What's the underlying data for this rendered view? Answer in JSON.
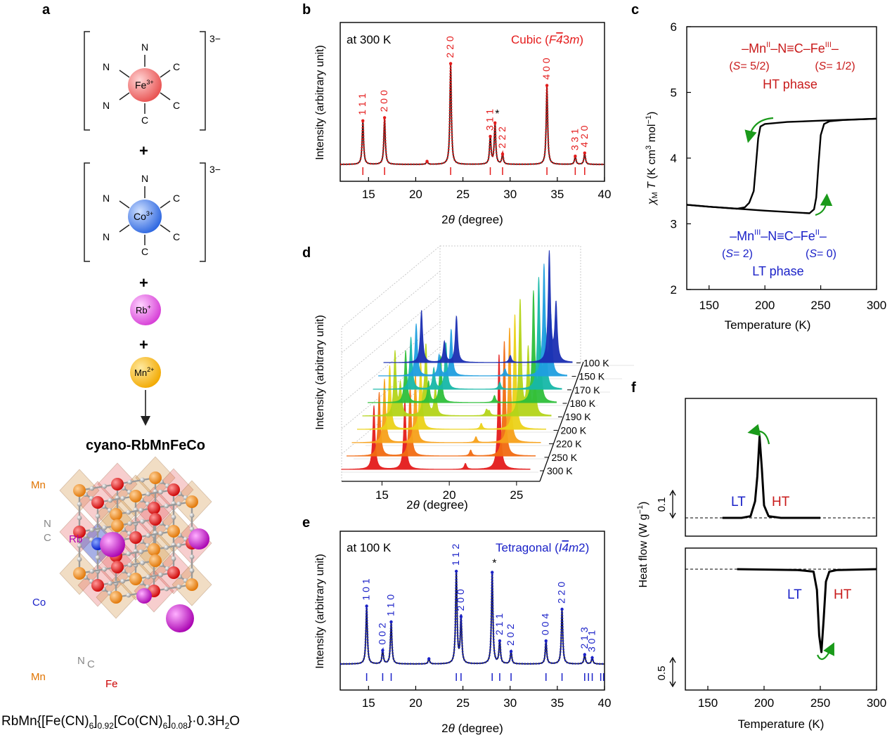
{
  "panel_letters": {
    "a": "a",
    "b": "b",
    "c": "c",
    "d": "d",
    "e": "e",
    "f": "f"
  },
  "panel_a": {
    "charge_top": "3−",
    "charge_mid": "3−",
    "fe_ion": "Fe",
    "fe_charge": "3+",
    "co_ion": "Co",
    "co_charge": "3+",
    "rb_ion": "Rb",
    "rb_charge": "+",
    "mn_ion": "Mn",
    "mn_charge": "2+",
    "ligand_n": "N",
    "ligand_c": "C",
    "plus": "+",
    "product_title": "cyano-RbMnFeCo",
    "struct_labels": {
      "mn_top": "Mn",
      "n": "N",
      "c": "C",
      "rb": "Rb",
      "co": "Co",
      "n2": "N",
      "c2": "C",
      "mn_bottom": "Mn",
      "fe": "Fe"
    },
    "formula": "RbMn{[Fe(CN)6]0.92[Co(CN)6]0.08}·0.3H2O"
  },
  "chart_data": [
    {
      "panel": "b",
      "type": "line",
      "annotation_left": "at 300 K",
      "annotation_right": "Cubic (F43m)",
      "xlabel": "2θ (degree)",
      "ylabel": "Intensity (arbitrary unit)",
      "xlim": [
        12,
        40
      ],
      "x_ticks": [
        15,
        20,
        25,
        30,
        35,
        40
      ],
      "color": "#e41b1b",
      "peaks": [
        {
          "x": 14.4,
          "h": 0.42,
          "label": "1 1 1"
        },
        {
          "x": 16.7,
          "h": 0.45,
          "label": "2 0 0"
        },
        {
          "x": 21.2,
          "h": 0.03,
          "label": ""
        },
        {
          "x": 23.7,
          "h": 0.97,
          "label": "2 2 0"
        },
        {
          "x": 27.9,
          "h": 0.27,
          "label": "3 1 1"
        },
        {
          "x": 28.4,
          "h": 0.4,
          "label": "*"
        },
        {
          "x": 29.2,
          "h": 0.1,
          "label": "2 2 2"
        },
        {
          "x": 33.9,
          "h": 0.76,
          "label": "4 0 0"
        },
        {
          "x": 36.9,
          "h": 0.08,
          "label": "3 3 1"
        },
        {
          "x": 37.9,
          "h": 0.11,
          "label": "4 2 0"
        }
      ],
      "ticks_x": [
        14.4,
        16.7,
        23.7,
        27.9,
        29.2,
        33.9,
        36.9,
        37.9
      ]
    },
    {
      "panel": "c",
      "type": "line",
      "xlabel": "Temperature (K)",
      "ylabel": "χMT (K cm3 mol−1)",
      "xlim": [
        130,
        300
      ],
      "ylim": [
        2,
        6
      ],
      "x_ticks": [
        150,
        200,
        250,
        300
      ],
      "y_ticks": [
        2,
        3,
        4,
        5,
        6
      ],
      "ht_label_line1": "–MnII–N≡C–FeIII–",
      "ht_spin1": "(S= 5/2)",
      "ht_spin2": "(S= 1/2)",
      "ht_phase": "HT phase",
      "lt_label_line1": "–MnIII–N≡C–FeII–",
      "lt_spin1": "(S= 2)",
      "lt_spin2": "(S= 0)",
      "lt_phase": "LT phase",
      "series": [
        {
          "name": "cooling",
          "x": [
            300,
            250,
            220,
            200,
            196,
            194,
            192,
            190,
            186,
            182,
            175,
            150,
            130
          ],
          "y": [
            4.6,
            4.57,
            4.55,
            4.52,
            4.48,
            4.3,
            3.9,
            3.5,
            3.32,
            3.25,
            3.23,
            3.26,
            3.29
          ]
        },
        {
          "name": "heating",
          "x": [
            130,
            150,
            200,
            240,
            244,
            246,
            248,
            250,
            253,
            258,
            270,
            300
          ],
          "y": [
            3.29,
            3.26,
            3.2,
            3.16,
            3.22,
            3.4,
            3.9,
            4.35,
            4.52,
            4.56,
            4.58,
            4.6
          ]
        }
      ]
    },
    {
      "panel": "d",
      "type": "line",
      "xlabel": "2θ (degree)",
      "ylabel": "Intensity (arbitrary unit)",
      "x_ticks": [
        15,
        20,
        25
      ],
      "series": [
        {
          "name": "300 K",
          "color": "#e41b1b"
        },
        {
          "name": "250 K",
          "color": "#f26b11"
        },
        {
          "name": "220 K",
          "color": "#f7a11a"
        },
        {
          "name": "200 K",
          "color": "#ecd219"
        },
        {
          "name": "190 K",
          "color": "#b4d419"
        },
        {
          "name": "180 K",
          "color": "#2fbf3a"
        },
        {
          "name": "170 K",
          "color": "#17b8a8"
        },
        {
          "name": "150 K",
          "color": "#1f9fe0"
        },
        {
          "name": "100 K",
          "color": "#1b2fb3"
        }
      ]
    },
    {
      "panel": "e",
      "type": "line",
      "annotation_left": "at 100 K",
      "annotation_right": "Tetragonal (I4m2)",
      "xlabel": "2θ (degree)",
      "ylabel": "Intensity (arbitrary unit)",
      "xlim": [
        12,
        40
      ],
      "x_ticks": [
        15,
        20,
        25,
        30,
        35,
        40
      ],
      "color": "#1b22c8",
      "peaks": [
        {
          "x": 14.8,
          "h": 0.55,
          "label": "1 0 1"
        },
        {
          "x": 16.5,
          "h": 0.13,
          "label": "0 0 2"
        },
        {
          "x": 17.4,
          "h": 0.4,
          "label": "1 1 0"
        },
        {
          "x": 21.4,
          "h": 0.05,
          "label": ""
        },
        {
          "x": 24.3,
          "h": 0.88,
          "label": "1 1 2"
        },
        {
          "x": 24.8,
          "h": 0.45,
          "label": "2 0 0"
        },
        {
          "x": 28.1,
          "h": 0.87,
          "label": "*"
        },
        {
          "x": 28.9,
          "h": 0.22,
          "label": "2 1 1"
        },
        {
          "x": 30.1,
          "h": 0.12,
          "label": "2 0 2"
        },
        {
          "x": 33.8,
          "h": 0.22,
          "label": "0 0 4"
        },
        {
          "x": 35.5,
          "h": 0.52,
          "label": "2 2 0"
        },
        {
          "x": 37.9,
          "h": 0.09,
          "label": "2 1 3"
        },
        {
          "x": 38.7,
          "h": 0.06,
          "label": "3 0 1"
        }
      ],
      "ticks_x": [
        14.8,
        16.5,
        17.4,
        24.3,
        24.8,
        28.1,
        28.9,
        30.1,
        33.8,
        35.5,
        37.9,
        38.3,
        38.7,
        39.6,
        39.9
      ]
    },
    {
      "panel": "f",
      "type": "line",
      "xlabel": "Temperature (K)",
      "ylabel": "Heat flow (W g−1)",
      "xlim": [
        130,
        300
      ],
      "x_ticks": [
        150,
        200,
        250,
        300
      ],
      "scale_top": "0.1",
      "scale_bottom": "0.5",
      "lt": "LT",
      "ht": "HT",
      "series": [
        {
          "name": "cooling",
          "x": [
            163,
            180,
            188,
            192,
            194,
            196,
            198,
            200,
            204,
            215,
            250
          ],
          "y": [
            0.0,
            0.0,
            0.02,
            0.2,
            0.5,
            0.98,
            0.6,
            0.15,
            0.02,
            0.0,
            0.0
          ]
        },
        {
          "name": "heating",
          "x": [
            176,
            230,
            244,
            247,
            249,
            251,
            253,
            255,
            258,
            265,
            300
          ],
          "y": [
            0.0,
            -0.01,
            -0.03,
            -0.25,
            -0.8,
            -1.0,
            -0.6,
            -0.15,
            -0.03,
            -0.01,
            0.0
          ]
        }
      ]
    }
  ]
}
